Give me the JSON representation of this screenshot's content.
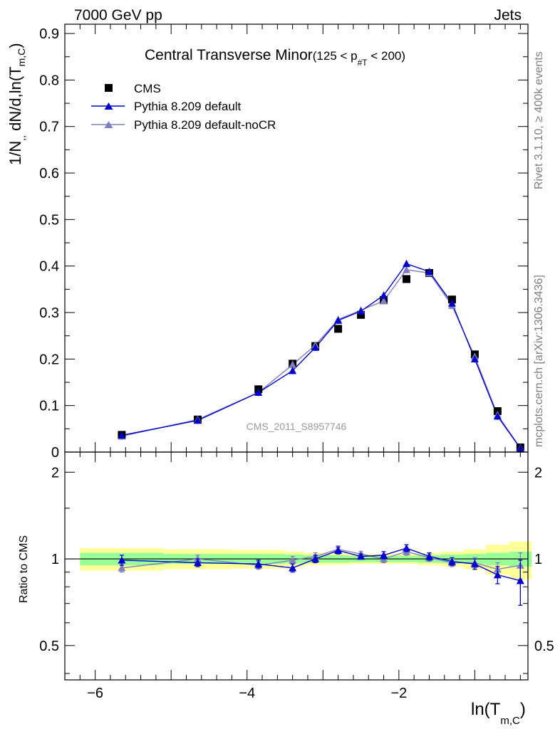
{
  "header": {
    "left": "7000 GeV pp",
    "right": "Jets"
  },
  "side_labels": {
    "rivet": "Rivet 3.1.10, ≥ 400k events",
    "mcplots": "mcplots.cern.ch [arXiv:1306.3436]"
  },
  "watermark": "CMS_2011_S8957746",
  "chart_data": {
    "type": "line",
    "title": "Central Transverse Minor",
    "title_qualifier": {
      "prefix": "(125 < p",
      "sub": "#T",
      "suffix": " < 200)"
    },
    "ylabel": {
      "main": "1/N",
      "sub1": ",,",
      "mid": " dN/d,ln(T",
      "sub2": "m,C",
      "end": ")"
    },
    "xlabel": {
      "main": "ln(T",
      "sub": "m,C",
      "end": ")"
    },
    "ratio_ylabel": "Ratio to CMS",
    "xlim": [
      -6.4,
      -0.3
    ],
    "ylim": [
      0,
      0.92
    ],
    "ratio_ylim": [
      0.38,
      2.35
    ],
    "x_ticks": [
      -6,
      -4,
      -2
    ],
    "x_tick_labels": [
      "−6",
      "−4",
      "−2"
    ],
    "y_ticks": [
      0,
      0.1,
      0.2,
      0.3,
      0.4,
      0.5,
      0.6,
      0.7,
      0.8,
      0.9
    ],
    "y_tick_labels": [
      "0",
      "0.1",
      "0.2",
      "0.3",
      "0.4",
      "0.5",
      "0.6",
      "0.7",
      "0.8",
      "0.9"
    ],
    "ratio_y_ticks": [
      0.5,
      1,
      2
    ],
    "ratio_y_tick_labels": [
      "0.5",
      "1",
      "2"
    ],
    "x": [
      -5.65,
      -4.65,
      -3.85,
      -3.4,
      -3.1,
      -2.8,
      -2.5,
      -2.2,
      -1.9,
      -1.6,
      -1.3,
      -1.0,
      -0.7,
      -0.4
    ],
    "bin_edges": [
      -6.2,
      -5.1,
      -4.2,
      -3.5,
      -3.25,
      -2.95,
      -2.65,
      -2.35,
      -2.05,
      -1.75,
      -1.45,
      -1.15,
      -0.85,
      -0.55,
      -0.25
    ],
    "series": [
      {
        "name": "CMS",
        "marker": "square",
        "color": "#000000",
        "values": [
          0.037,
          0.07,
          0.135,
          0.19,
          0.228,
          0.265,
          0.295,
          0.327,
          0.372,
          0.385,
          0.328,
          0.21,
          0.088,
          0.01
        ]
      },
      {
        "name": "Pythia 8.209 default",
        "marker": "triangle",
        "color": "#0000cc",
        "values": [
          0.036,
          0.068,
          0.128,
          0.175,
          0.225,
          0.283,
          0.303,
          0.337,
          0.405,
          0.388,
          0.32,
          0.2,
          0.077,
          0.008
        ]
      },
      {
        "name": "Pythia 8.209 default-noCR",
        "marker": "triangle",
        "color": "#7f7fbf",
        "values": [
          0.034,
          0.07,
          0.128,
          0.188,
          0.23,
          0.285,
          0.305,
          0.325,
          0.392,
          0.385,
          0.315,
          0.205,
          0.08,
          0.009
        ]
      }
    ],
    "ratio_series": [
      {
        "name": "Pythia 8.209 default",
        "values": [
          0.99,
          0.97,
          0.96,
          0.93,
          1.0,
          1.07,
          1.02,
          1.03,
          1.09,
          1.02,
          0.98,
          0.96,
          0.88,
          0.84
        ],
        "errors": [
          0.04,
          0.03,
          0.03,
          0.03,
          0.03,
          0.03,
          0.02,
          0.03,
          0.03,
          0.03,
          0.03,
          0.04,
          0.06,
          0.15
        ]
      },
      {
        "name": "Pythia 8.209 default-noCR",
        "values": [
          0.93,
          1.0,
          0.95,
          0.99,
          1.02,
          1.08,
          1.04,
          1.0,
          1.06,
          1.01,
          0.97,
          0.97,
          0.92,
          0.95
        ],
        "errors": [
          0.03,
          0.03,
          0.03,
          0.03,
          0.03,
          0.03,
          0.02,
          0.03,
          0.03,
          0.03,
          0.03,
          0.04,
          0.05,
          0.1
        ]
      }
    ],
    "band_inner_color": "#99ff99",
    "band_outer_color": "#ffff99",
    "band_inner_halfwidth": [
      0.05,
      0.04,
      0.04,
      0.035,
      0.03,
      0.03,
      0.025,
      0.025,
      0.025,
      0.03,
      0.035,
      0.04,
      0.05,
      0.06
    ],
    "band_outer_halfwidth": [
      0.09,
      0.08,
      0.075,
      0.06,
      0.05,
      0.045,
      0.04,
      0.04,
      0.04,
      0.05,
      0.06,
      0.08,
      0.12,
      0.15
    ]
  }
}
